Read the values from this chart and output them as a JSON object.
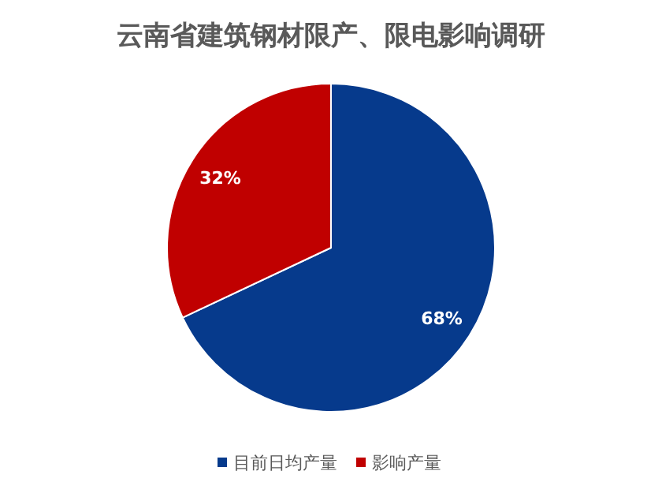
{
  "chart_data": {
    "type": "pie",
    "title": "云南省建筑钢材限产、限电影响调研",
    "categories": [
      "目前日均产量",
      "影响产量"
    ],
    "values": [
      68,
      32
    ],
    "colors": [
      "#063a8c",
      "#c00000"
    ],
    "value_labels": [
      "68%",
      "32%"
    ],
    "legend": "bottom"
  }
}
